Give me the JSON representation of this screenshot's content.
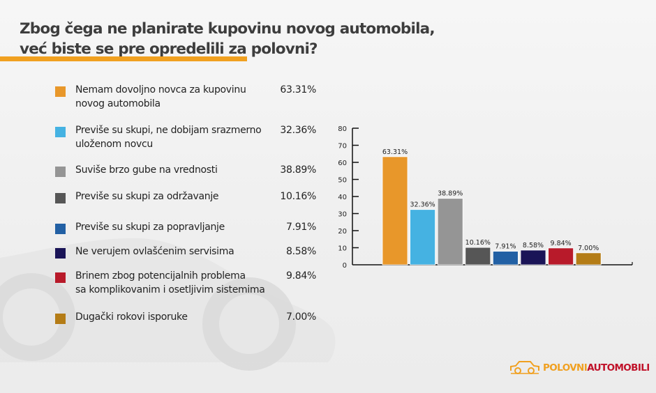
{
  "header": {
    "title_line1": "Zbog čega ne planirate kupovinu novog automobila,",
    "title_line2": "već biste se pre opredelili za polovni?",
    "accent_color": "#f0a020"
  },
  "legend": {
    "items": [
      {
        "line1": "Nemam dovoljno novca za kupovinu",
        "line2": "novog automobila",
        "value": "63.31%",
        "color": "#e8972a"
      },
      {
        "line1": "Previše su skupi, ne dobijam srazmerno",
        "line2": "uloženom novcu",
        "value": "32.36%",
        "color": "#45b2e2"
      },
      {
        "line1": "Suviše brzo gube na vrednosti",
        "line2": "",
        "value": "38.89%",
        "color": "#959595"
      },
      {
        "line1": "Previše su skupi za održavanje",
        "line2": "",
        "value": "10.16%",
        "color": "#565656"
      },
      {
        "line1": "Previše su skupi za popravljanje",
        "line2": "",
        "value": "7.91%",
        "color": "#2260a4"
      },
      {
        "line1": "Ne verujem ovlašćenim servisima",
        "line2": "",
        "value": "8.58%",
        "color": "#1a1457"
      },
      {
        "line1": "Brinem zbog potencijalnih problema",
        "line2": "sa komplikovanim i osetljivim sistemima",
        "value": "9.84%",
        "color": "#b81a2a"
      },
      {
        "line1": "Dugački rokovi isporuke",
        "line2": "",
        "value": "7.00%",
        "color": "#b47c16"
      }
    ]
  },
  "chart_data": {
    "type": "bar",
    "title": "Zbog čega ne planirate kupovinu novog automobila, već biste se pre opredelili za polovni?",
    "xlabel": "",
    "ylabel": "",
    "ylim": [
      0,
      80
    ],
    "yticks": [
      0,
      10,
      20,
      30,
      40,
      50,
      60,
      70,
      80
    ],
    "grid": false,
    "legend_position": "left",
    "categories": [
      "Nemam dovoljno novca za kupovinu novog automobila",
      "Previše su skupi, ne dobijam srazmerno uloženom novcu",
      "Suviše brzo gube na vrednosti",
      "Previše su skupi za održavanje",
      "Previše su skupi za popravljanje",
      "Ne verujem ovlašćenim servisima",
      "Brinem zbog potencijalnih problema sa komplikovanim i osetljivim sistemima",
      "Dugački rokovi isporuke"
    ],
    "values": [
      63.31,
      32.36,
      38.89,
      10.16,
      7.91,
      8.58,
      9.84,
      7.0
    ],
    "data_labels": [
      "63.31%",
      "32.36%",
      "38.89%",
      "10.16%",
      "7.91%",
      "8.58%",
      "9.84%",
      "7.00%"
    ],
    "colors": [
      "#e8972a",
      "#45b2e2",
      "#959595",
      "#565656",
      "#2260a4",
      "#1a1457",
      "#b81a2a",
      "#b47c16"
    ]
  },
  "logo": {
    "part1": "POLOVNI",
    "part2": "AUTOMOBILI"
  }
}
